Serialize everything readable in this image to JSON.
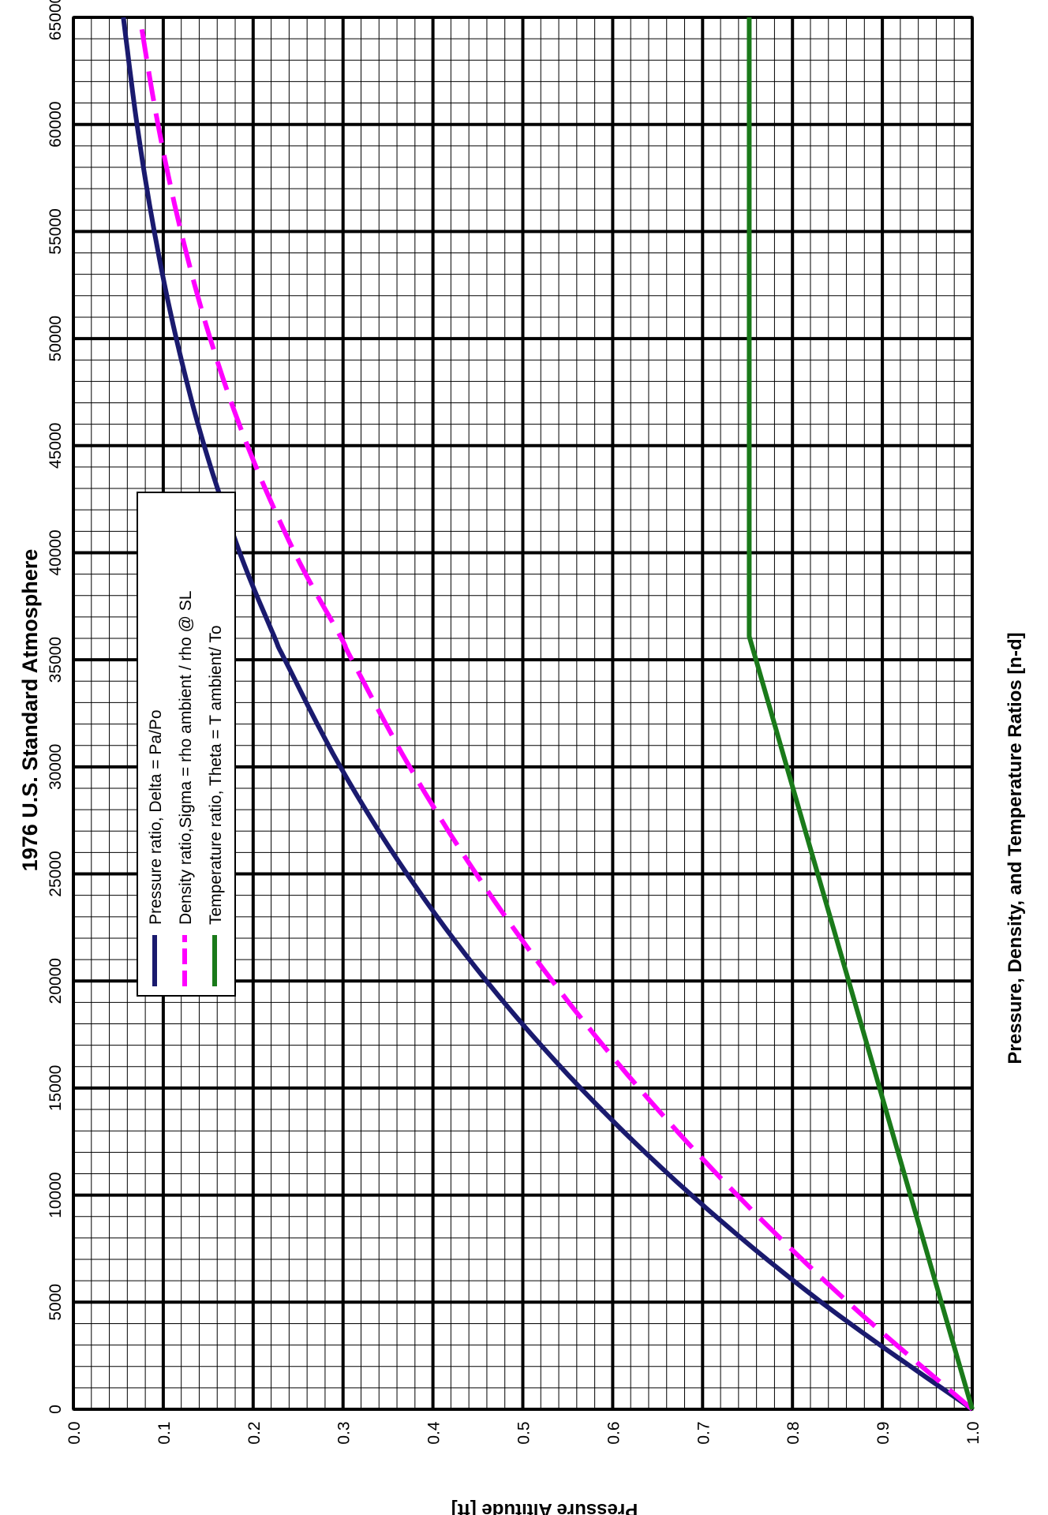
{
  "chart_data": {
    "type": "line",
    "title": "1976 U.S. Standard Atmosphere",
    "xlabel": "Pressure Altitude [ft]",
    "ylabel": "Pressure, Density, and Temperature Ratios [n-d]",
    "orientation": "rotated 90° clockwise (altitude axis runs along the bottom edge, ratio axis along the right edge)",
    "xlim": [
      0,
      65000
    ],
    "ylim": [
      0.0,
      1.0
    ],
    "x_ticks": [
      "0",
      "5000",
      "10000",
      "15000",
      "20000",
      "25000",
      "30000",
      "35000",
      "40000",
      "45000",
      "50000",
      "55000",
      "60000",
      "65000"
    ],
    "y_ticks": [
      "0.0",
      "0.1",
      "0.2",
      "0.3",
      "0.4",
      "0.5",
      "0.6",
      "0.7",
      "0.8",
      "0.9",
      "1.0"
    ],
    "grid": true,
    "legend_position": "upper-middle",
    "x": [
      0,
      5000,
      10000,
      15000,
      20000,
      25000,
      30000,
      35000,
      36089,
      40000,
      45000,
      50000,
      55000,
      60000,
      65000
    ],
    "series": [
      {
        "name": "Pressure ratio, Delta = Pa/Po",
        "style": "solid",
        "color": "#1a1a6e",
        "values": [
          1.0,
          0.832,
          0.6877,
          0.5643,
          0.4595,
          0.3711,
          0.297,
          0.2353,
          0.2234,
          0.1851,
          0.1455,
          0.1145,
          0.09,
          0.0708,
          0.0556
        ]
      },
      {
        "name": "Density ratio,Sigma = rho ambient / rho @ SL",
        "style": "dashed",
        "color": "#ff00ff",
        "values": [
          1.0,
          0.8617,
          0.7385,
          0.6292,
          0.5328,
          0.4481,
          0.3741,
          0.3099,
          0.2971,
          0.2462,
          0.1936,
          0.1522,
          0.1197,
          0.0941,
          0.074
        ]
      },
      {
        "name": "Temperature ratio, Theta = T ambient/ To",
        "style": "solid",
        "color": "#1a7a1a",
        "values": [
          1.0,
          0.9656,
          0.9312,
          0.8969,
          0.8625,
          0.8281,
          0.7937,
          0.7594,
          0.7519,
          0.7519,
          0.7519,
          0.7519,
          0.7519,
          0.7519,
          0.7519
        ]
      }
    ]
  }
}
